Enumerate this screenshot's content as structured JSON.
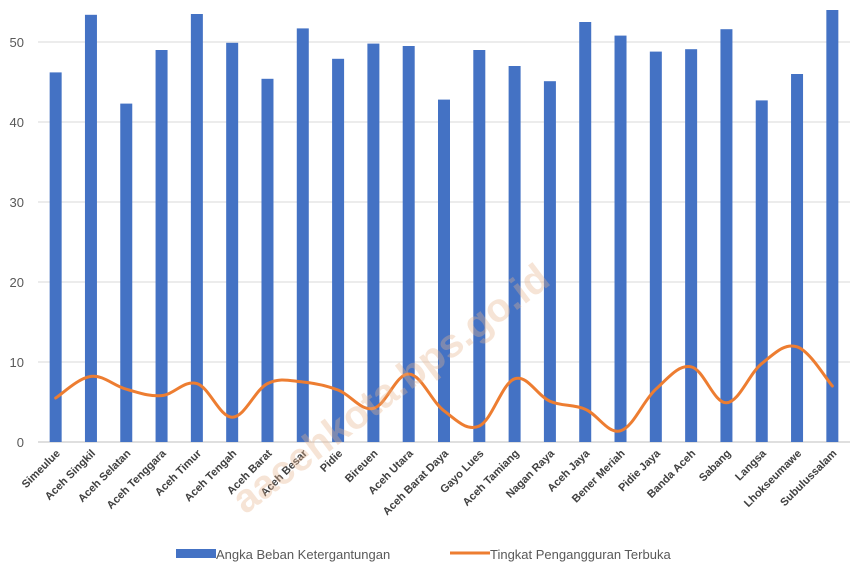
{
  "chart_data": {
    "type": "bar",
    "categories": [
      "Simeulue",
      "Aceh Singkil",
      "Aceh Selatan",
      "Aceh Tenggara",
      "Aceh Timur",
      "Aceh Tengah",
      "Aceh Barat",
      "Aceh Besar",
      "Pidie",
      "Bireuen",
      "Aceh Utara",
      "Aceh Barat Daya",
      "Gayo Lues",
      "Aceh Tamiang",
      "Nagan Raya",
      "Aceh Jaya",
      "Bener Meriah",
      "Pidie Jaya",
      "Banda Aceh",
      "Sabang",
      "Langsa",
      "Lhokseumawe",
      "Subulussalam"
    ],
    "series": [
      {
        "name": "Angka Beban Ketergantungan",
        "type": "bar",
        "color": "#4472C4",
        "values": [
          46.2,
          53.4,
          42.3,
          49.0,
          53.5,
          49.9,
          45.4,
          51.7,
          47.9,
          49.8,
          49.5,
          42.8,
          49.0,
          47.0,
          45.1,
          52.5,
          50.8,
          48.8,
          49.1,
          51.6,
          42.7,
          46.0,
          54.0
        ]
      },
      {
        "name": "Tingkat Pengangguran Terbuka",
        "type": "line",
        "color": "#ED7D31",
        "values": [
          5.5,
          8.2,
          6.6,
          5.8,
          7.3,
          3.1,
          7.3,
          7.5,
          6.5,
          4.2,
          8.5,
          3.9,
          2.0,
          7.9,
          5.1,
          4.1,
          1.4,
          6.6,
          9.4,
          4.9,
          9.8,
          11.9,
          7.0
        ]
      }
    ],
    "yticks": [
      "0",
      "10",
      "20",
      "30",
      "40",
      "50"
    ],
    "ylim": [
      0,
      55
    ],
    "grid": true,
    "legend_position": "bottom"
  },
  "watermark": "aacehkota.bps.go.id"
}
